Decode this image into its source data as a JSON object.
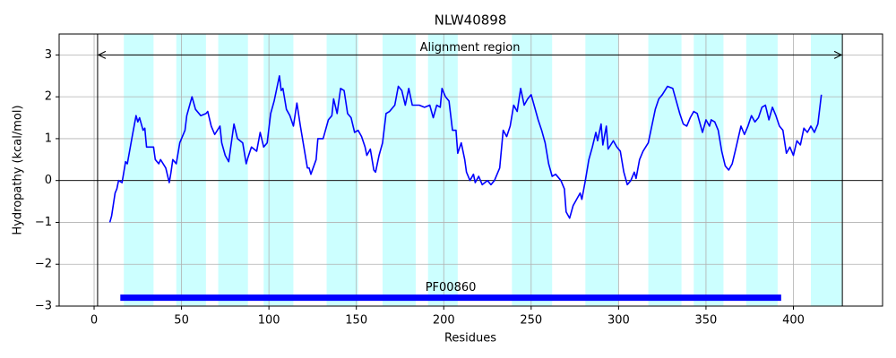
{
  "chart_data": {
    "type": "line",
    "title": "NLW40898",
    "x_label": "Residues",
    "y_label": "Hydropathy (kcal/mol)",
    "xlim": [
      -20,
      451
    ],
    "ylim": [
      -3,
      3.5
    ],
    "xticks": [
      0,
      50,
      100,
      150,
      200,
      250,
      300,
      350,
      400
    ],
    "yticks": [
      {
        "value": -3,
        "label": "−3"
      },
      {
        "value": -2,
        "label": "−2"
      },
      {
        "value": -1,
        "label": "−1"
      },
      0,
      1,
      2,
      3
    ],
    "grid": true,
    "zero_line": true,
    "color": "#0000ff",
    "region_color": "#00ffff",
    "region_alpha": 0.2,
    "regions": [
      [
        17,
        34
      ],
      [
        47,
        64
      ],
      [
        71,
        88
      ],
      [
        97,
        114
      ],
      [
        133,
        151
      ],
      [
        165,
        184
      ],
      [
        191,
        208
      ],
      [
        239,
        262
      ],
      [
        281,
        300
      ],
      [
        317,
        336
      ],
      [
        343,
        360
      ],
      [
        373,
        391
      ],
      [
        410,
        428
      ]
    ],
    "alignment_region": {
      "label": "Alignment region",
      "start": 2,
      "end": 428,
      "y": 3
    },
    "domain": {
      "label": "PF00860",
      "start": 15,
      "end": 393,
      "y": -2.8,
      "color": "#0000ff"
    },
    "x": [
      9,
      10,
      12,
      13,
      14,
      16,
      18,
      19,
      22,
      24,
      25,
      26,
      28,
      29,
      30,
      34,
      35,
      37,
      38,
      41,
      43,
      44,
      45,
      47,
      49,
      52,
      53,
      56,
      58,
      61,
      64,
      65,
      67,
      69,
      72,
      73,
      75,
      77,
      80,
      82,
      85,
      87,
      88,
      90,
      93,
      95,
      97,
      99,
      101,
      103,
      106,
      107,
      108,
      110,
      112,
      114,
      116,
      118,
      120,
      122,
      123,
      124,
      127,
      128,
      131,
      134,
      136,
      137,
      139,
      141,
      143,
      145,
      147,
      149,
      151,
      153,
      155,
      156,
      158,
      160,
      161,
      163,
      165,
      167,
      169,
      172,
      174,
      176,
      178,
      180,
      182,
      186,
      189,
      192,
      194,
      196,
      198,
      199,
      201,
      203,
      205,
      207,
      208,
      210,
      212,
      213,
      215,
      217,
      218,
      220,
      222,
      225,
      227,
      229,
      232,
      234,
      236,
      238,
      240,
      242,
      244,
      246,
      248,
      250,
      252,
      254,
      256,
      258,
      260,
      262,
      264,
      267,
      269,
      270,
      272,
      274,
      276,
      278,
      279,
      281,
      283,
      285,
      287,
      288,
      290,
      291,
      293,
      294,
      297,
      299,
      301,
      303,
      305,
      307,
      309,
      310,
      312,
      314,
      317,
      319,
      321,
      323,
      325,
      328,
      331,
      333,
      335,
      337,
      339,
      341,
      343,
      345,
      348,
      350,
      352,
      353,
      355,
      357,
      359,
      361,
      363,
      365,
      367,
      370,
      372,
      374,
      376,
      378,
      380,
      382,
      384,
      386,
      388,
      390,
      392,
      394,
      396,
      398,
      400,
      402,
      404,
      406,
      408,
      410,
      412,
      414,
      416
    ],
    "values": [
      -1.0,
      -0.85,
      -0.3,
      -0.2,
      0.0,
      -0.05,
      0.45,
      0.4,
      1.1,
      1.55,
      1.4,
      1.5,
      1.2,
      1.25,
      0.8,
      0.8,
      0.5,
      0.4,
      0.5,
      0.3,
      -0.05,
      0.2,
      0.5,
      0.4,
      0.9,
      1.2,
      1.55,
      2.0,
      1.7,
      1.55,
      1.6,
      1.65,
      1.3,
      1.1,
      1.3,
      0.9,
      0.6,
      0.45,
      1.35,
      1.0,
      0.9,
      0.4,
      0.55,
      0.8,
      0.7,
      1.15,
      0.8,
      0.9,
      1.6,
      1.9,
      2.5,
      2.15,
      2.2,
      1.7,
      1.55,
      1.3,
      1.85,
      1.3,
      0.8,
      0.3,
      0.3,
      0.15,
      0.5,
      1.0,
      1.0,
      1.45,
      1.55,
      1.95,
      1.6,
      2.2,
      2.15,
      1.6,
      1.5,
      1.15,
      1.2,
      1.05,
      0.8,
      0.6,
      0.75,
      0.25,
      0.2,
      0.6,
      0.9,
      1.6,
      1.65,
      1.8,
      2.25,
      2.15,
      1.8,
      2.2,
      1.8,
      1.8,
      1.75,
      1.8,
      1.5,
      1.8,
      1.75,
      2.2,
      2.0,
      1.9,
      1.2,
      1.2,
      0.65,
      0.9,
      0.5,
      0.2,
      0.0,
      0.15,
      -0.05,
      0.1,
      -0.1,
      0.0,
      -0.1,
      0.0,
      0.3,
      1.2,
      1.05,
      1.3,
      1.8,
      1.65,
      2.2,
      1.8,
      1.95,
      2.05,
      1.75,
      1.45,
      1.2,
      0.9,
      0.4,
      0.1,
      0.15,
      0.0,
      -0.2,
      -0.75,
      -0.9,
      -0.6,
      -0.45,
      -0.3,
      -0.45,
      0.0,
      0.5,
      0.8,
      1.15,
      0.95,
      1.35,
      0.85,
      1.3,
      0.75,
      0.95,
      0.8,
      0.7,
      0.2,
      -0.1,
      0.0,
      0.2,
      0.05,
      0.5,
      0.7,
      0.9,
      1.3,
      1.7,
      1.95,
      2.05,
      2.25,
      2.2,
      1.9,
      1.6,
      1.35,
      1.3,
      1.5,
      1.65,
      1.6,
      1.15,
      1.45,
      1.3,
      1.45,
      1.4,
      1.2,
      0.7,
      0.35,
      0.25,
      0.4,
      0.75,
      1.3,
      1.1,
      1.3,
      1.55,
      1.4,
      1.5,
      1.75,
      1.8,
      1.45,
      1.75,
      1.55,
      1.3,
      1.2,
      0.65,
      0.8,
      0.6,
      0.95,
      0.85,
      1.25,
      1.15,
      1.3,
      1.15,
      1.35,
      2.05
    ]
  }
}
